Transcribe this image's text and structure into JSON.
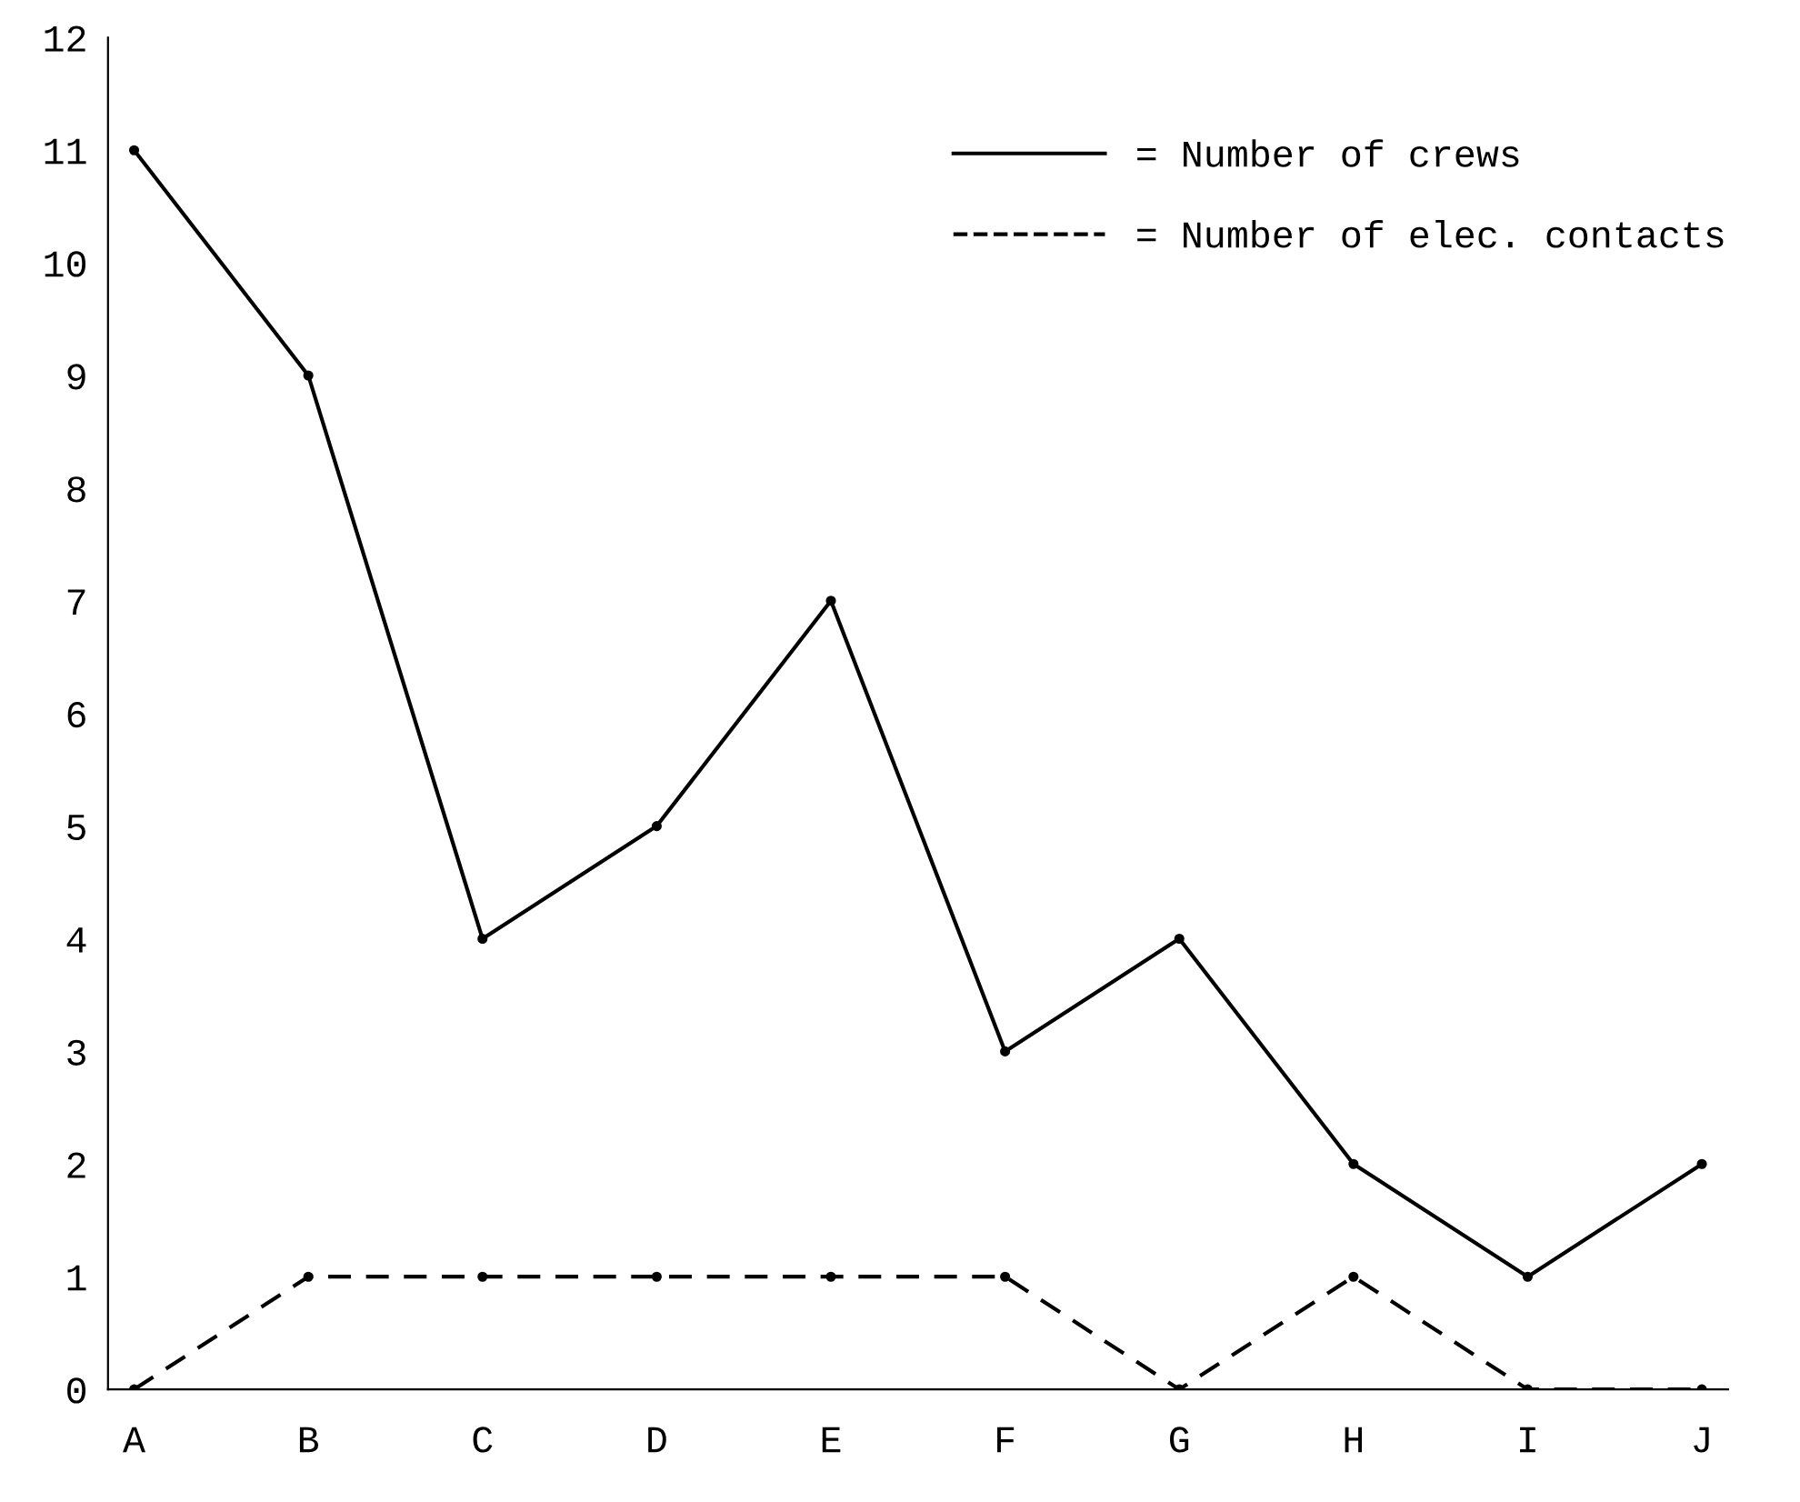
{
  "chart_data": {
    "type": "line",
    "categories": [
      "A",
      "B",
      "C",
      "D",
      "E",
      "F",
      "G",
      "H",
      "I",
      "J"
    ],
    "series": [
      {
        "name": "= Number of crews",
        "color": "#000000",
        "line_style": "solid",
        "values": [
          11,
          9,
          4,
          5,
          7,
          3,
          4,
          2,
          1,
          2
        ]
      },
      {
        "name": "= Number of elec. contacts",
        "color": "#000000",
        "line_style": "dashed",
        "values": [
          0,
          1,
          1,
          1,
          1,
          1,
          0,
          1,
          0,
          0
        ]
      }
    ],
    "ylim": [
      0,
      12
    ],
    "yticks": [
      0,
      1,
      2,
      3,
      4,
      5,
      6,
      7,
      8,
      9,
      10,
      11,
      12
    ],
    "marker": "circle",
    "grid": false,
    "legend": "top right"
  }
}
